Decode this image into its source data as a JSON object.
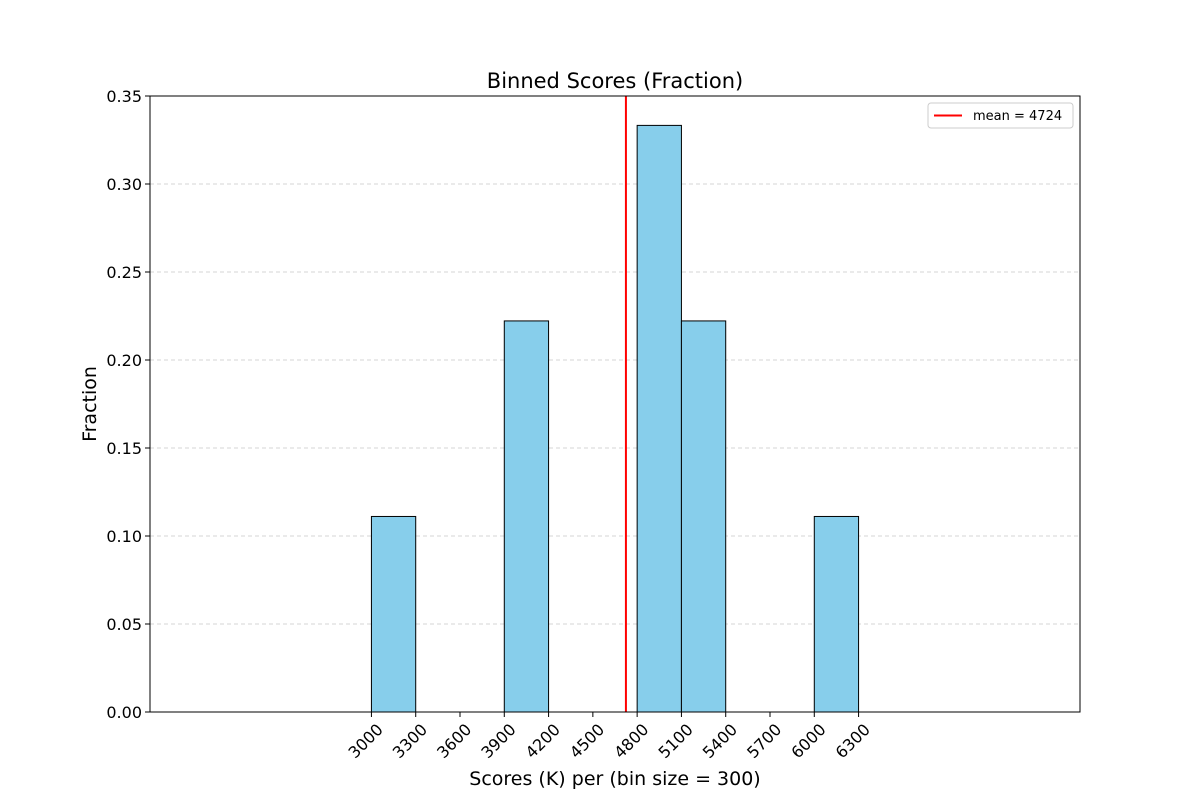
{
  "chart_data": {
    "type": "bar",
    "title": "Binned Scores (Fraction)",
    "xlabel": "Scores (K) per (bin size = 300)",
    "ylabel": "Fraction",
    "bin_size": 300,
    "bins": [
      {
        "start": 3000,
        "end": 3300,
        "value": 0.1111
      },
      {
        "start": 3300,
        "end": 3600,
        "value": 0
      },
      {
        "start": 3600,
        "end": 3900,
        "value": 0
      },
      {
        "start": 3900,
        "end": 4200,
        "value": 0.2222
      },
      {
        "start": 4200,
        "end": 4500,
        "value": 0
      },
      {
        "start": 4500,
        "end": 4800,
        "value": 0
      },
      {
        "start": 4800,
        "end": 5100,
        "value": 0.3333
      },
      {
        "start": 5100,
        "end": 5400,
        "value": 0.2222
      },
      {
        "start": 5400,
        "end": 5700,
        "value": 0
      },
      {
        "start": 5700,
        "end": 6000,
        "value": 0
      },
      {
        "start": 6000,
        "end": 6300,
        "value": 0.1111
      }
    ],
    "x_ticks": [
      3000,
      3300,
      3600,
      3900,
      4200,
      4500,
      4800,
      5100,
      5400,
      5700,
      6000,
      6300
    ],
    "y_ticks": [
      "0.00",
      "0.05",
      "0.10",
      "0.15",
      "0.20",
      "0.25",
      "0.30",
      "0.35"
    ],
    "xlim": [
      1500,
      7800
    ],
    "ylim": [
      0,
      0.35
    ],
    "mean_line": {
      "value": 4724,
      "label": "mean = 4724",
      "color": "#ff0000"
    },
    "legend": {
      "location": "top-right",
      "entries": [
        "mean = 4724"
      ]
    },
    "bar_color": "#87ceeb",
    "bar_edge_color": "#000000",
    "grid": {
      "y": true,
      "x": false,
      "style": "dashed"
    }
  }
}
